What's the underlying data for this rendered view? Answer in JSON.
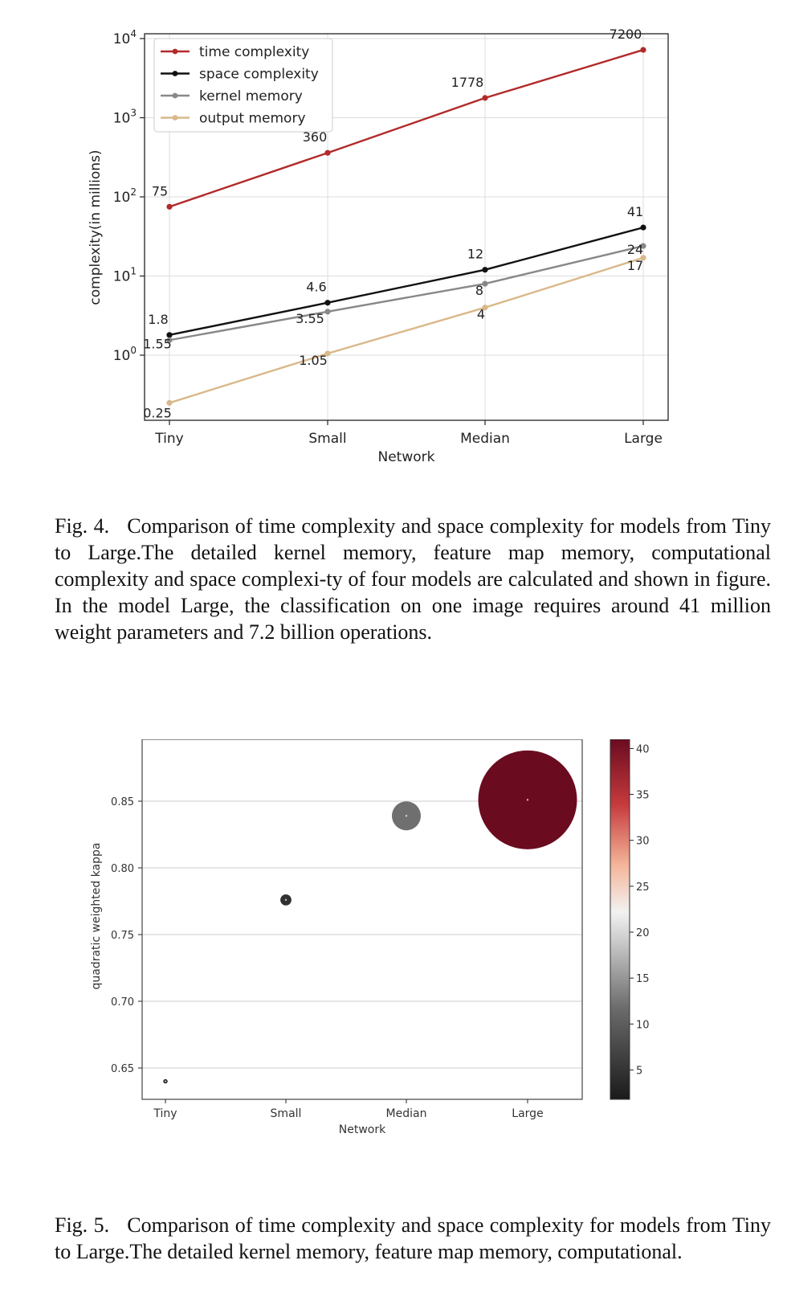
{
  "figures": [
    {
      "caption": {
        "label": "Fig. 4.",
        "text": "Comparison of time complexity and space complexity for models from Tiny to Large.The detailed kernel memory, feature map memory, computational complexity and space complexi-ty of four models are calculated and shown in figure. In the model Large, the classification on one image requires around 41 million weight parameters and 7.2 billion operations."
      }
    },
    {
      "caption": {
        "label": "Fig. 5.",
        "text": "Comparison of time complexity and space complexity for models from Tiny to Large.The detailed kernel memory, feature map memory, computational."
      }
    }
  ],
  "chart_data": [
    {
      "type": "line",
      "yscale": "log",
      "categories": [
        "Tiny",
        "Small",
        "Median",
        "Large"
      ],
      "xlabel": "Network",
      "ylabel": "complexity(in millions)",
      "ylim": [
        0.2,
        10000
      ],
      "yticks": [
        "10^0",
        "10^1",
        "10^2",
        "10^3",
        "10^4"
      ],
      "legend_position": "top-left",
      "grid": true,
      "series": [
        {
          "name": "time complexity",
          "color": "#b22a2a",
          "values": [
            75,
            360,
            1778,
            7200
          ],
          "labels": [
            "75",
            "360",
            "1778",
            "7200"
          ]
        },
        {
          "name": "space complexity",
          "color": "#111111",
          "values": [
            1.8,
            4.6,
            12,
            41
          ],
          "labels": [
            "1.8",
            "4.6",
            "12",
            "41"
          ]
        },
        {
          "name": "kernel memory",
          "color": "#888888",
          "values": [
            1.55,
            3.55,
            8,
            24
          ],
          "labels": [
            "1.55",
            "3.55",
            "8",
            "24"
          ]
        },
        {
          "name": "output memory",
          "color": "#d9b88a",
          "values": [
            0.25,
            1.05,
            4,
            17
          ],
          "labels": "0.25|1.05|4|17"
        }
      ]
    },
    {
      "type": "scatter",
      "categories": [
        "Tiny",
        "Small",
        "Median",
        "Large"
      ],
      "xlabel": "Network",
      "ylabel": "quadratic weighted kappa",
      "ylim": [
        0.625,
        0.9
      ],
      "yticks": [
        "0.65",
        "0.70",
        "0.75",
        "0.80",
        "0.85",
        "0.90"
      ],
      "grid": "horizontal",
      "points": [
        {
          "x": "Tiny",
          "y": 0.64,
          "size_value": 1.8
        },
        {
          "x": "Small",
          "y": 0.776,
          "size_value": 4.6
        },
        {
          "x": "Median",
          "y": 0.839,
          "size_value": 12
        },
        {
          "x": "Large",
          "y": 0.851,
          "size_value": 41
        }
      ],
      "colorbar": {
        "range": [
          1.8,
          41
        ],
        "ticks": [
          "5",
          "10",
          "15",
          "20",
          "25",
          "30",
          "35",
          "40"
        ],
        "colormap": "RdGy_r"
      }
    }
  ]
}
